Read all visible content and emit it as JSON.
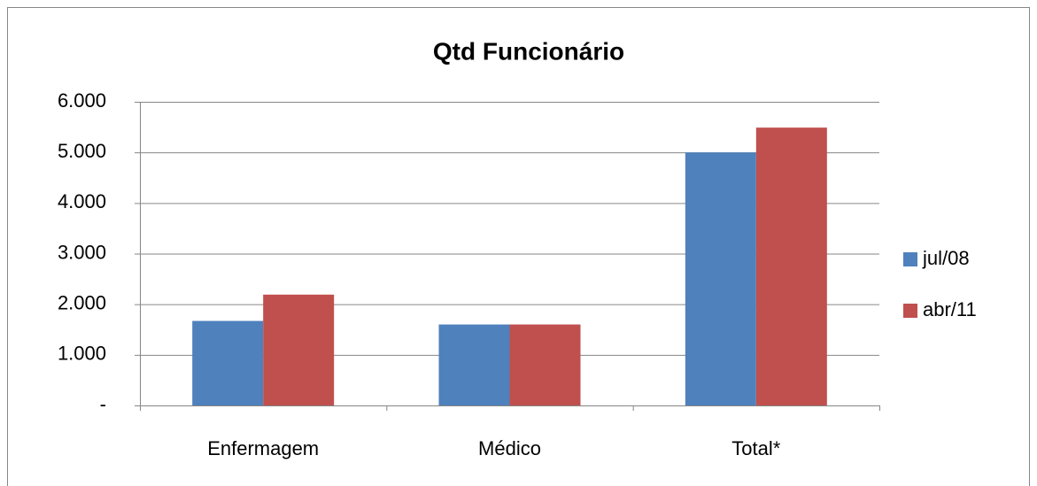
{
  "chart_data": {
    "type": "bar",
    "title": "Qtd Funcionário",
    "categories": [
      "Enfermagem",
      "Médico",
      "Total*"
    ],
    "series": [
      {
        "name": "jul/08",
        "color": "#4f81bd",
        "values": [
          1670,
          1600,
          5000
        ]
      },
      {
        "name": "abr/11",
        "color": "#c0504d",
        "values": [
          2190,
          1600,
          5490
        ]
      }
    ],
    "ylim": [
      0,
      6000
    ],
    "yticks": [
      {
        "value": 0,
        "label": "-"
      },
      {
        "value": 1000,
        "label": "1.000"
      },
      {
        "value": 2000,
        "label": "2.000"
      },
      {
        "value": 3000,
        "label": "3.000"
      },
      {
        "value": 4000,
        "label": "4.000"
      },
      {
        "value": 5000,
        "label": "5.000"
      },
      {
        "value": 6000,
        "label": "6.000"
      }
    ],
    "grid": true,
    "legend": "right"
  }
}
